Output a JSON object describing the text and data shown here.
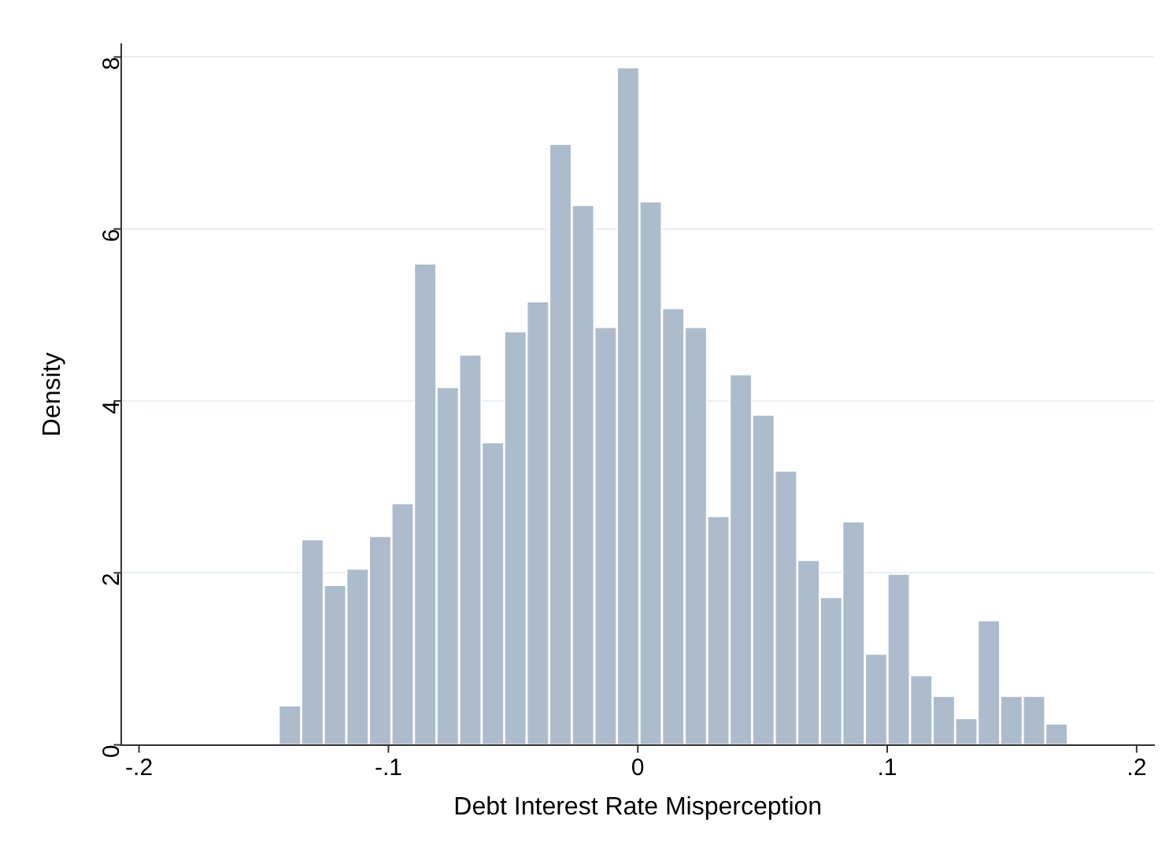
{
  "chart_data": {
    "type": "histogram",
    "xlabel": "Debt Interest Rate Misperception",
    "ylabel": "Density",
    "bins": [
      -0.144,
      -0.135,
      -0.1259,
      -0.1169,
      -0.1078,
      -0.0988,
      -0.0898,
      -0.0807,
      -0.0717,
      -0.0626,
      -0.0536,
      -0.0446,
      -0.0355,
      -0.0265,
      -0.0174,
      -0.0084,
      0.0006,
      0.0097,
      0.0187,
      0.0278,
      0.0368,
      0.0458,
      0.0549,
      0.0639,
      0.073,
      0.082,
      0.091,
      0.1001,
      0.1091,
      0.1182,
      0.1272,
      0.1362,
      0.1453,
      0.1543,
      0.1634,
      0.1724
    ],
    "values": [
      0.46,
      2.39,
      1.86,
      2.05,
      2.43,
      2.81,
      5.6,
      4.16,
      4.54,
      3.52,
      4.81,
      5.16,
      6.99,
      6.28,
      4.86,
      7.88,
      6.32,
      5.08,
      4.86,
      2.66,
      4.31,
      3.84,
      3.19,
      2.15,
      1.72,
      2.6,
      1.06,
      1.99,
      0.81,
      0.57,
      0.31,
      1.45,
      0.57,
      0.57,
      0.25
    ],
    "color": "#adbccc",
    "xlim": [
      -0.207,
      0.207
    ],
    "xticks": [
      {
        "value": -0.2,
        "label": "-.2"
      },
      {
        "value": -0.1,
        "label": "-.1"
      },
      0,
      {
        "value": 0.1,
        "label": ".1"
      },
      {
        "value": 0.2,
        "label": ".2"
      }
    ],
    "ylim": [
      0,
      8.15
    ],
    "yticks": [
      0,
      2,
      4,
      6,
      8
    ],
    "grid": "y",
    "legend": false
  }
}
